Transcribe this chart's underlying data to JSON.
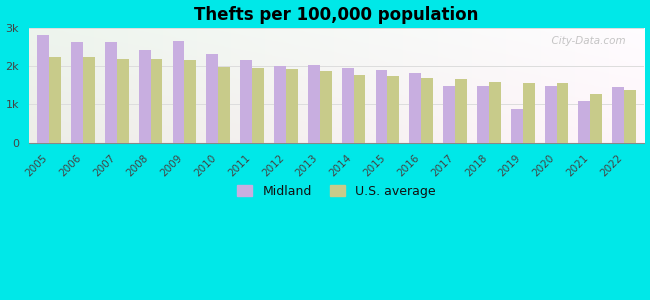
{
  "title": "Thefts per 100,000 population",
  "years": [
    2005,
    2006,
    2007,
    2008,
    2009,
    2010,
    2011,
    2012,
    2013,
    2014,
    2015,
    2016,
    2017,
    2018,
    2019,
    2020,
    2021,
    2022
  ],
  "midland": [
    2820,
    2620,
    2620,
    2420,
    2650,
    2320,
    2170,
    2000,
    2020,
    1940,
    1910,
    1820,
    1480,
    1480,
    870,
    1480,
    1100,
    1450
  ],
  "us_avg": [
    2230,
    2230,
    2190,
    2190,
    2150,
    1980,
    1940,
    1920,
    1880,
    1780,
    1750,
    1700,
    1660,
    1590,
    1570,
    1550,
    1260,
    1370
  ],
  "midland_color": "#c8aee0",
  "us_avg_color": "#c8cb8a",
  "background_color": "#00e8e8",
  "ylim": [
    0,
    3000
  ],
  "yticks": [
    0,
    1000,
    2000,
    3000
  ],
  "ytick_labels": [
    "0",
    "1k",
    "2k",
    "3k"
  ],
  "legend_midland": "Midland",
  "legend_us": "U.S. average",
  "watermark": "  City-Data.com"
}
